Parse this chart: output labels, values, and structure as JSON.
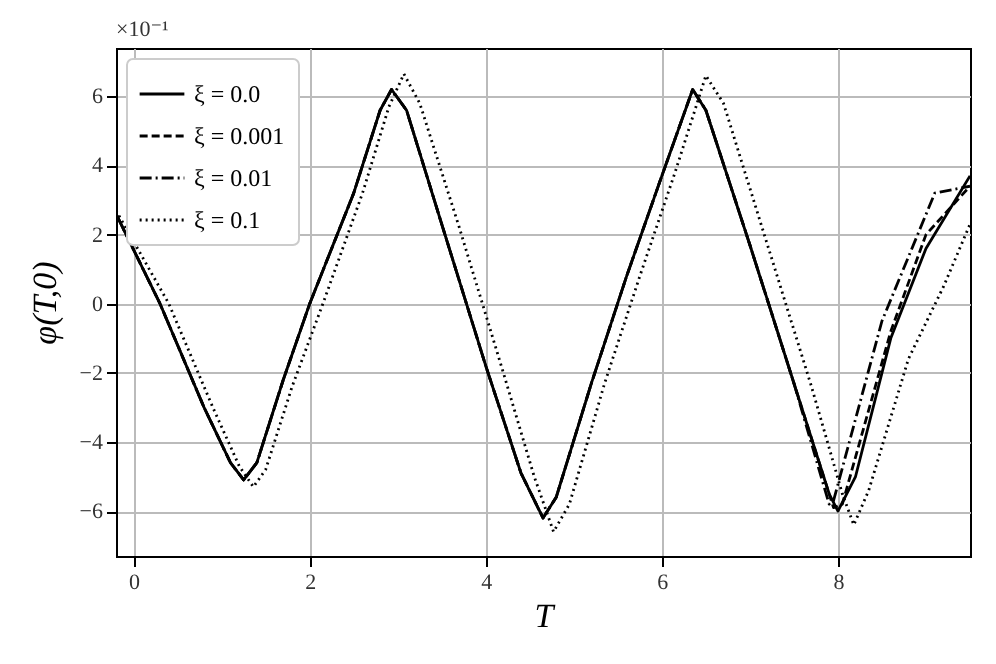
{
  "chart_data": {
    "type": "line",
    "xlabel": "T",
    "ylabel": "φ(T,0)",
    "annotations": [
      "×10⁻¹"
    ],
    "xlim": [
      -0.2,
      9.5
    ],
    "ylim": [
      -7.3,
      7.4
    ],
    "xticks": [
      0,
      2,
      4,
      6,
      8
    ],
    "yticks": [
      -6,
      -4,
      -2,
      0,
      2,
      4,
      6
    ],
    "grid": true,
    "legend": "top left",
    "marker": "none",
    "series": [
      {
        "name": "ξ = 0.0",
        "color": "#000000",
        "line_style": "solid",
        "x": [
          -0.2,
          0.3,
          0.8,
          1.1,
          1.25,
          1.4,
          1.7,
          2.0,
          2.5,
          2.8,
          2.93,
          3.1,
          3.5,
          4.0,
          4.4,
          4.65,
          4.8,
          5.2,
          5.6,
          6.0,
          6.35,
          6.5,
          7.0,
          7.5,
          7.9,
          8.0,
          8.2,
          8.6,
          9.0,
          9.5
        ],
        "values": [
          2.6,
          0,
          -3.0,
          -4.6,
          -5.1,
          -4.6,
          -2.2,
          0,
          3.2,
          5.6,
          6.2,
          5.6,
          2.3,
          -1.8,
          -4.9,
          -6.2,
          -5.6,
          -2.3,
          0.8,
          3.7,
          6.2,
          5.6,
          1.7,
          -2.3,
          -5.5,
          -6.0,
          -5.0,
          -1.0,
          1.6,
          3.7
        ]
      },
      {
        "name": "ξ = 0.001",
        "color": "#000000",
        "line_style": "dashed",
        "x": [
          -0.2,
          0.3,
          0.8,
          1.1,
          1.25,
          1.4,
          1.7,
          2.0,
          2.5,
          2.8,
          2.93,
          3.1,
          3.5,
          4.0,
          4.4,
          4.65,
          4.8,
          5.2,
          5.6,
          6.0,
          6.35,
          6.5,
          7.0,
          7.5,
          7.95,
          8.05,
          8.6,
          9.0,
          9.5
        ],
        "values": [
          2.6,
          0,
          -3.0,
          -4.6,
          -5.1,
          -4.6,
          -2.2,
          0,
          3.2,
          5.6,
          6.2,
          5.6,
          2.3,
          -1.8,
          -4.9,
          -6.2,
          -5.6,
          -2.3,
          0.8,
          3.7,
          6.2,
          5.6,
          1.7,
          -2.3,
          -5.9,
          -5.8,
          -0.8,
          2.0,
          3.4
        ]
      },
      {
        "name": "ξ = 0.01",
        "color": "#000000",
        "line_style": "dashdot",
        "x": [
          -0.2,
          0.3,
          0.8,
          1.1,
          1.25,
          1.4,
          1.7,
          2.0,
          2.5,
          2.8,
          2.93,
          3.1,
          3.5,
          4.0,
          4.4,
          4.65,
          4.8,
          5.2,
          5.6,
          6.0,
          6.35,
          6.5,
          7.0,
          7.5,
          7.9,
          7.95,
          8.5,
          9.1,
          9.5
        ],
        "values": [
          2.6,
          0,
          -3.0,
          -4.6,
          -5.1,
          -4.6,
          -2.2,
          0,
          3.2,
          5.6,
          6.2,
          5.6,
          2.3,
          -1.8,
          -4.9,
          -6.2,
          -5.6,
          -2.3,
          0.8,
          3.7,
          6.2,
          5.6,
          1.7,
          -2.3,
          -5.8,
          -5.7,
          -0.5,
          3.2,
          3.4
        ]
      },
      {
        "name": "ξ = 0.1",
        "color": "#000000",
        "line_style": "dotted",
        "x": [
          -0.2,
          0.4,
          0.9,
          1.2,
          1.36,
          1.5,
          1.8,
          2.15,
          2.6,
          2.9,
          3.07,
          3.25,
          3.7,
          4.2,
          4.55,
          4.77,
          4.95,
          5.35,
          5.75,
          6.15,
          6.5,
          6.7,
          7.2,
          7.7,
          8.05,
          8.18,
          8.35,
          8.8,
          9.2,
          9.5
        ],
        "values": [
          2.7,
          0,
          -3.0,
          -4.7,
          -5.3,
          -4.8,
          -2.4,
          0,
          3.2,
          5.7,
          6.65,
          5.8,
          2.2,
          -2.0,
          -5.0,
          -6.6,
          -5.8,
          -2.3,
          0.8,
          3.8,
          6.6,
          5.8,
          1.7,
          -2.4,
          -5.5,
          -6.4,
          -5.4,
          -1.6,
          0.5,
          2.3
        ]
      }
    ]
  }
}
